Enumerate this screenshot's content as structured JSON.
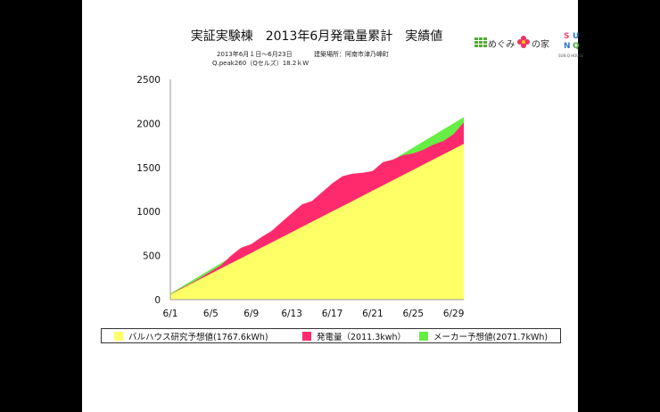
{
  "header": {
    "title": "実証実験棟　2013年6月発電量累計　実績値",
    "period": "2013年6月１日〜6月23日",
    "location": "建築場所：阿南市津乃峰町",
    "panel": "Q.peak260（Qセルズ）18.2ｋW"
  },
  "logo": {
    "text_left": "めぐみ",
    "text_right": "の家",
    "sunq_letters": [
      "S",
      "U",
      "N",
      "Q"
    ],
    "sunq_sub": "SUN Q HOUSE"
  },
  "colors": {
    "background": "#000000",
    "slide": "#ffffff",
    "forecast_research": "#ffff66",
    "generation": "#ff2a6e",
    "maker_forecast": "#66ee44",
    "axis": "#999999"
  },
  "chart_data": {
    "type": "area",
    "x": [
      "6/1",
      "6/2",
      "6/3",
      "6/4",
      "6/5",
      "6/6",
      "6/7",
      "6/8",
      "6/9",
      "6/10",
      "6/11",
      "6/12",
      "6/13",
      "6/14",
      "6/15",
      "6/16",
      "6/17",
      "6/18",
      "6/19",
      "6/20",
      "6/21",
      "6/22",
      "6/23",
      "6/24",
      "6/25",
      "6/26",
      "6/27",
      "6/28",
      "6/29",
      "6/30"
    ],
    "x_tick_labels": [
      "6/1",
      "6/5",
      "6/9",
      "6/13",
      "6/17",
      "6/21",
      "6/25",
      "6/29"
    ],
    "ylim": [
      0,
      2500
    ],
    "y_ticks": [
      0,
      500,
      1000,
      1500,
      2000,
      2500
    ],
    "grid": false,
    "legend_position": "bottom",
    "series": [
      {
        "name": "バルハウス研究予想値(1767.6kWh)",
        "color": "#ffff66",
        "values": [
          59,
          118,
          177,
          236,
          295,
          354,
          413,
          471,
          530,
          589,
          648,
          707,
          766,
          825,
          884,
          943,
          1002,
          1060,
          1119,
          1178,
          1237,
          1296,
          1355,
          1414,
          1473,
          1532,
          1591,
          1650,
          1709,
          1768
        ]
      },
      {
        "name": "発電量（2011.3kwh）",
        "color": "#ff2a6e",
        "values": [
          60,
          125,
          185,
          250,
          320,
          390,
          500,
          590,
          630,
          710,
          780,
          880,
          980,
          1080,
          1120,
          1220,
          1320,
          1400,
          1430,
          1440,
          1460,
          1560,
          1590,
          1640,
          1660,
          1700,
          1760,
          1800,
          1880,
          2011
        ]
      },
      {
        "name": "メーカー予想値(2071.7kWh)",
        "color": "#66ee44",
        "values": [
          69,
          138,
          207,
          276,
          345,
          414,
          483,
          552,
          622,
          691,
          760,
          829,
          898,
          967,
          1036,
          1105,
          1174,
          1243,
          1312,
          1381,
          1450,
          1519,
          1588,
          1657,
          1726,
          1795,
          1864,
          1933,
          2002,
          2072
        ]
      }
    ]
  }
}
